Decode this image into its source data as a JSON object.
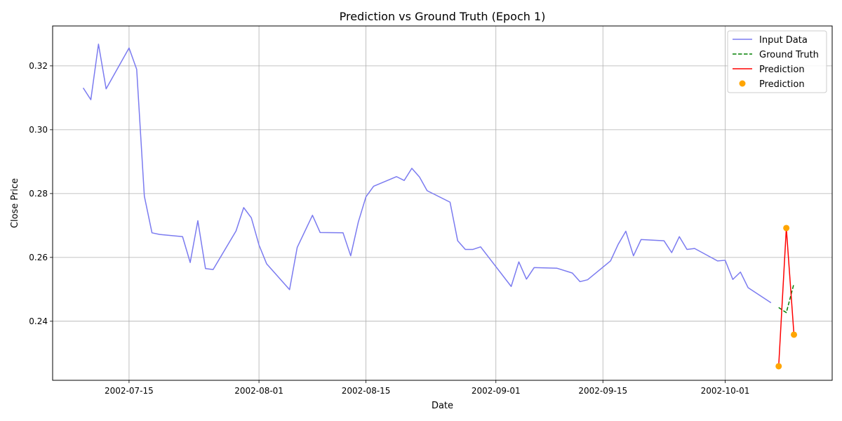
{
  "chart_data": {
    "type": "line",
    "title": "Prediction vs Ground Truth (Epoch 1)",
    "xlabel": "Date",
    "ylabel": "Close Price",
    "x_type": "date",
    "xlim": [
      "2002-07-05",
      "2002-10-15"
    ],
    "ylim": [
      0.2215,
      0.3325
    ],
    "x_ticks": [
      "2002-07-15",
      "2002-08-01",
      "2002-08-15",
      "2002-09-01",
      "2002-09-15",
      "2002-10-01"
    ],
    "y_ticks": [
      0.24,
      0.26,
      0.28,
      0.3,
      0.32
    ],
    "y_tick_labels": [
      "0.24",
      "0.26",
      "0.28",
      "0.30",
      "0.32"
    ],
    "grid": true,
    "legend_position": "top-right",
    "series": [
      {
        "name": "Input Data",
        "kind": "line",
        "color": "#7b7bf0",
        "points": [
          [
            "2002-07-09",
            0.3131
          ],
          [
            "2002-07-10",
            0.3094
          ],
          [
            "2002-07-11",
            0.3268
          ],
          [
            "2002-07-12",
            0.3128
          ],
          [
            "2002-07-15",
            0.3256
          ],
          [
            "2002-07-16",
            0.3189
          ],
          [
            "2002-07-17",
            0.2792
          ],
          [
            "2002-07-18",
            0.2677
          ],
          [
            "2002-07-19",
            0.2672
          ],
          [
            "2002-07-22",
            0.2665
          ],
          [
            "2002-07-23",
            0.2584
          ],
          [
            "2002-07-24",
            0.2715
          ],
          [
            "2002-07-25",
            0.2565
          ],
          [
            "2002-07-26",
            0.2562
          ],
          [
            "2002-07-29",
            0.2683
          ],
          [
            "2002-07-30",
            0.2756
          ],
          [
            "2002-07-31",
            0.2724
          ],
          [
            "2002-08-01",
            0.2639
          ],
          [
            "2002-08-02",
            0.258
          ],
          [
            "2002-08-05",
            0.2499
          ],
          [
            "2002-08-06",
            0.2631
          ],
          [
            "2002-08-08",
            0.2732
          ],
          [
            "2002-08-09",
            0.2678
          ],
          [
            "2002-08-12",
            0.2677
          ],
          [
            "2002-08-13",
            0.2605
          ],
          [
            "2002-08-14",
            0.2711
          ],
          [
            "2002-08-15",
            0.279
          ],
          [
            "2002-08-16",
            0.2823
          ],
          [
            "2002-08-19",
            0.2853
          ],
          [
            "2002-08-20",
            0.2841
          ],
          [
            "2002-08-21",
            0.2879
          ],
          [
            "2002-08-22",
            0.2852
          ],
          [
            "2002-08-23",
            0.2809
          ],
          [
            "2002-08-26",
            0.2773
          ],
          [
            "2002-08-27",
            0.2652
          ],
          [
            "2002-08-28",
            0.2625
          ],
          [
            "2002-08-29",
            0.2625
          ],
          [
            "2002-08-30",
            0.2633
          ],
          [
            "2002-09-03",
            0.2509
          ],
          [
            "2002-09-04",
            0.2586
          ],
          [
            "2002-09-05",
            0.2532
          ],
          [
            "2002-09-06",
            0.2568
          ],
          [
            "2002-09-09",
            0.2566
          ],
          [
            "2002-09-11",
            0.2551
          ],
          [
            "2002-09-12",
            0.2524
          ],
          [
            "2002-09-13",
            0.253
          ],
          [
            "2002-09-16",
            0.2589
          ],
          [
            "2002-09-17",
            0.2641
          ],
          [
            "2002-09-18",
            0.2682
          ],
          [
            "2002-09-19",
            0.2605
          ],
          [
            "2002-09-20",
            0.2656
          ],
          [
            "2002-09-23",
            0.2652
          ],
          [
            "2002-09-24",
            0.2615
          ],
          [
            "2002-09-25",
            0.2665
          ],
          [
            "2002-09-26",
            0.2625
          ],
          [
            "2002-09-27",
            0.2628
          ],
          [
            "2002-09-30",
            0.2589
          ],
          [
            "2002-10-01",
            0.2591
          ],
          [
            "2002-10-02",
            0.2531
          ],
          [
            "2002-10-03",
            0.2554
          ],
          [
            "2002-10-04",
            0.2505
          ],
          [
            "2002-10-07",
            0.2458
          ]
        ]
      },
      {
        "name": "Ground Truth",
        "kind": "dashed-line",
        "color": "#008000",
        "points": [
          [
            "2002-10-08",
            0.2443
          ],
          [
            "2002-10-09",
            0.2427
          ],
          [
            "2002-10-10",
            0.2518
          ]
        ]
      },
      {
        "name": "Prediction",
        "kind": "line",
        "color": "#ff0000",
        "points": [
          [
            "2002-10-08",
            0.2259
          ],
          [
            "2002-10-09",
            0.2692
          ],
          [
            "2002-10-10",
            0.2358
          ]
        ]
      },
      {
        "name": "Prediction",
        "kind": "scatter",
        "color": "#ffa500",
        "points": [
          [
            "2002-10-08",
            0.2259
          ],
          [
            "2002-10-09",
            0.2692
          ],
          [
            "2002-10-10",
            0.2358
          ]
        ]
      }
    ]
  }
}
